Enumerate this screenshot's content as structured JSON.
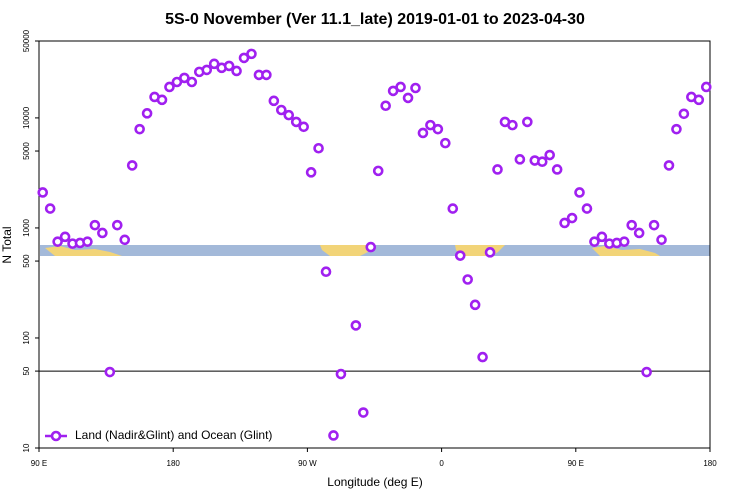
{
  "chart_data": {
    "type": "scatter",
    "title": "5S-0 November (Ver 11.1_late)   2019-01-01 to 2023-04-30",
    "xlabel": "Longitude (deg E)",
    "ylabel": "N Total",
    "log_y": true,
    "legend": "lower left",
    "hline": 50,
    "xlim": [
      90,
      540
    ],
    "xticks": [
      {
        "value": 90,
        "label": "90 E"
      },
      180,
      {
        "value": 270,
        "label": "90 W"
      },
      {
        "value": 360,
        "label": "0"
      },
      {
        "value": 450,
        "label": "90 E"
      },
      {
        "value": 540,
        "label": "180"
      }
    ],
    "ylim": [
      10,
      50000
    ],
    "yticks": [
      10,
      50,
      100,
      500,
      1000,
      5000,
      10000,
      50000
    ],
    "series": [
      {
        "name": "Land (Nadir&Glint) and Ocean (Glint)",
        "color": "#a020f0",
        "x": [
          92.5,
          97.5,
          102.5,
          107.5,
          112.5,
          117.5,
          122.5,
          127.5,
          132.5,
          137.5,
          142.5,
          147.5,
          152.5,
          157.5,
          162.5,
          167.5,
          172.5,
          177.5,
          182.5,
          187.5,
          192.5,
          197.5,
          202.5,
          207.5,
          212.5,
          217.5,
          222.5,
          227.5,
          232.5,
          237.5,
          242.5,
          247.5,
          252.5,
          257.5,
          262.5,
          267.5,
          272.5,
          277.5,
          282.5,
          287.5,
          292.5,
          302.5,
          307.5,
          312.5,
          317.5,
          322.5,
          327.5,
          332.5,
          337.5,
          342.5,
          347.5,
          352.5,
          357.5,
          362.5,
          367.5,
          372.5,
          377.5,
          382.5,
          387.5,
          392.5,
          397.5,
          402.5,
          407.5,
          412.5,
          417.5,
          422.5,
          427.5,
          432.5,
          437.5,
          442.5,
          447.5,
          452.5,
          457.5,
          462.5,
          467.5,
          472.5,
          477.5,
          482.5,
          487.5,
          492.5,
          497.5,
          502.5,
          507.5,
          512.5,
          517.5,
          522.5,
          527.5,
          532.5,
          537.5
        ],
        "values": [
          2100,
          1500,
          750,
          830,
          720,
          730,
          750,
          1060,
          900,
          49,
          1060,
          780,
          3700,
          7900,
          11000,
          15500,
          14600,
          19100,
          21200,
          23100,
          21200,
          26200,
          27300,
          31000,
          28500,
          29700,
          26700,
          35100,
          38200,
          24600,
          24600,
          14300,
          11800,
          10600,
          9200,
          8300,
          3200,
          5300,
          400,
          13,
          47,
          130,
          21,
          670,
          3300,
          12900,
          17600,
          19100,
          15200,
          18700,
          7300,
          8600,
          7900,
          5900,
          1500,
          560,
          340,
          200,
          67,
          600,
          3400,
          9200,
          8600,
          4200,
          9200,
          4100,
          4000,
          4600,
          3400,
          1110,
          1230,
          2100,
          1500,
          750,
          830,
          720,
          730,
          750,
          1060,
          900,
          49,
          1060,
          780,
          3700,
          7900,
          10900,
          15500,
          14600,
          19100
        ]
      }
    ]
  }
}
